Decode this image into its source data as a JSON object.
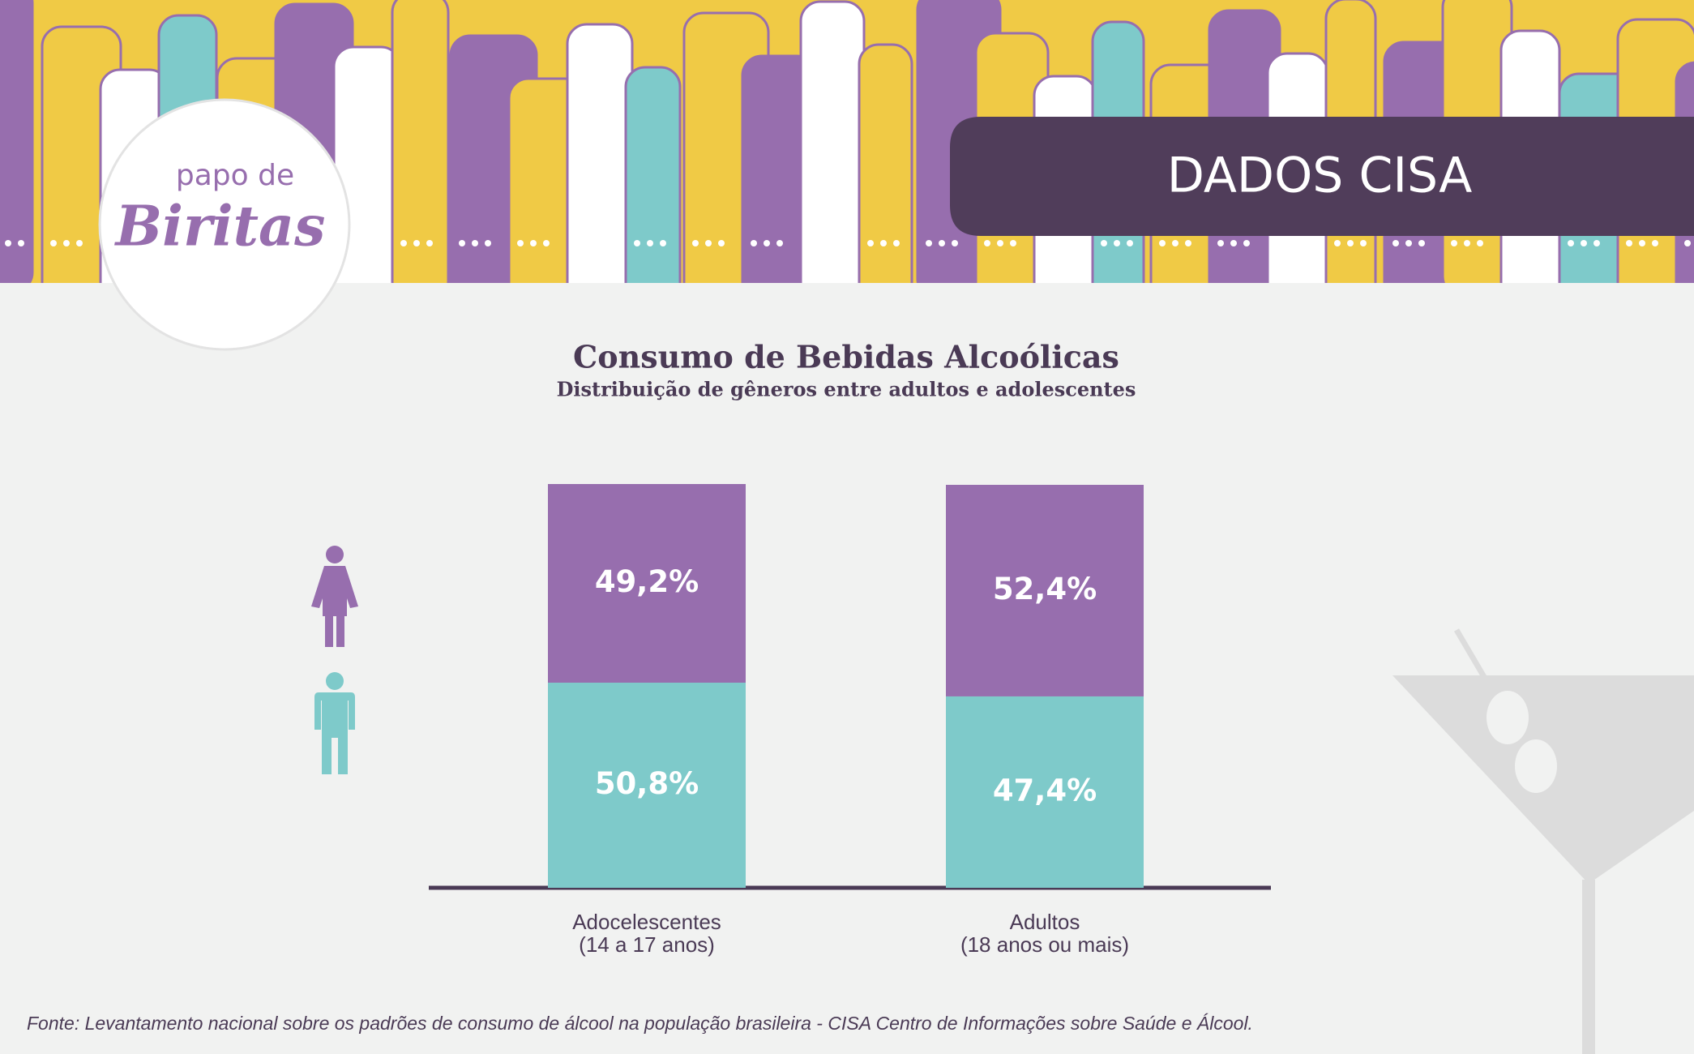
{
  "header": {
    "badge": "DADOS CISA"
  },
  "logo": {
    "line1": "papo de",
    "line2": "Biritas"
  },
  "chart_data": {
    "type": "bar",
    "stacked": true,
    "title": "Consumo de Bebidas Alcoólicas",
    "subtitle": "Distribuição de gêneros entre adultos e adolescentes",
    "categories": [
      [
        "Adocelescentes",
        "(14 a 17 anos)"
      ],
      [
        "Adultos",
        "(18 anos ou mais)"
      ]
    ],
    "series": [
      {
        "color": "#7ecaca",
        "values": [
          50.8,
          47.4
        ],
        "value_labels": [
          "50,8%",
          "47,4%"
        ]
      },
      {
        "color": "#976eae",
        "values": [
          49.2,
          52.4
        ],
        "value_labels": [
          "49,2%",
          "52,4%"
        ]
      }
    ],
    "ylim": [
      0,
      100
    ]
  },
  "source": "Fonte: Levantamento nacional sobre  os padrões de consumo de álcool na população brasileira - CISA Centro de Informações sobre Saúde e Álcool."
}
